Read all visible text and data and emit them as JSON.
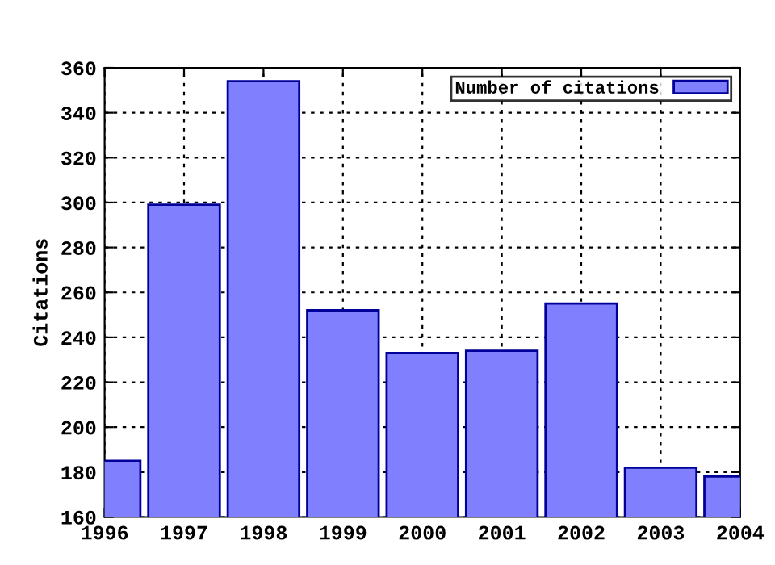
{
  "chart_data": {
    "type": "bar",
    "ylabel": "Citations",
    "x": [
      1996,
      1997,
      1998,
      1999,
      2000,
      2001,
      2002,
      2003,
      2004
    ],
    "series": [
      {
        "name": "Number of citations",
        "color": "#8080ff",
        "values": [
          185,
          299,
          354,
          252,
          233,
          234,
          255,
          182,
          178
        ]
      }
    ],
    "xlim": [
      1996,
      2004
    ],
    "xticks": [
      1996,
      1997,
      1998,
      1999,
      2000,
      2001,
      2002,
      2003,
      2004
    ],
    "ylim": [
      160,
      360
    ],
    "yticks": [
      160,
      180,
      200,
      220,
      240,
      260,
      280,
      300,
      320,
      340,
      360
    ],
    "grid": true,
    "legend": "top right"
  }
}
